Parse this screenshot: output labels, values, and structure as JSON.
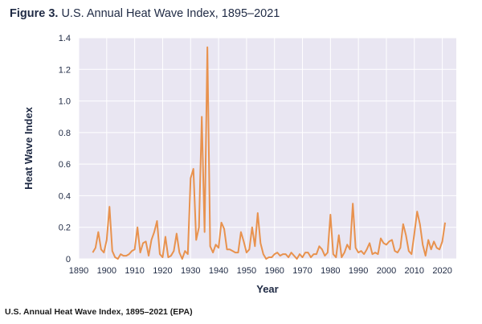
{
  "figure": {
    "label": "Figure 3.",
    "title": "U.S. Annual Heat Wave Index, 1895–2021"
  },
  "caption": "U.S. Annual Heat Wave Index, 1895–2021 (EPA)",
  "colors": {
    "line": "#e8924e",
    "plot_background": "#e9e6f2",
    "grid": "#ffffff",
    "axis_text": "#1f2a44"
  },
  "chart_data": {
    "type": "line",
    "title": "U.S. Annual Heat Wave Index, 1895–2021",
    "xlabel": "Year",
    "ylabel": "Heat Wave Index",
    "xlim": [
      1890,
      2025
    ],
    "ylim": [
      0,
      1.4
    ],
    "xticks": [
      1890,
      1900,
      1910,
      1920,
      1930,
      1940,
      1950,
      1960,
      1970,
      1980,
      1990,
      2000,
      2010,
      2020
    ],
    "yticks": [
      0,
      0.2,
      0.4,
      0.6,
      0.8,
      1.0,
      1.2,
      1.4
    ],
    "ytick_labels": [
      "0",
      "0.2",
      "0.4",
      "0.6",
      "0.8",
      "1.0",
      "1.2",
      "1.4"
    ],
    "grid": true,
    "series": [
      {
        "x": [
          1895,
          1896,
          1897,
          1898,
          1899,
          1900,
          1901,
          1902,
          1903,
          1904,
          1905,
          1906,
          1907,
          1908,
          1909,
          1910,
          1911,
          1912,
          1913,
          1914,
          1915,
          1916,
          1917,
          1918,
          1919,
          1920,
          1921,
          1922,
          1923,
          1924,
          1925,
          1926,
          1927,
          1928,
          1929,
          1930,
          1931,
          1932,
          1933,
          1934,
          1935,
          1936,
          1937,
          1938,
          1939,
          1940,
          1941,
          1942,
          1943,
          1944,
          1945,
          1946,
          1947,
          1948,
          1949,
          1950,
          1951,
          1952,
          1953,
          1954,
          1955,
          1956,
          1957,
          1958,
          1959,
          1960,
          1961,
          1962,
          1963,
          1964,
          1965,
          1966,
          1967,
          1968,
          1969,
          1970,
          1971,
          1972,
          1973,
          1974,
          1975,
          1976,
          1977,
          1978,
          1979,
          1980,
          1981,
          1982,
          1983,
          1984,
          1985,
          1986,
          1987,
          1988,
          1989,
          1990,
          1991,
          1992,
          1993,
          1994,
          1995,
          1996,
          1997,
          1998,
          1999,
          2000,
          2001,
          2002,
          2003,
          2004,
          2005,
          2006,
          2007,
          2008,
          2009,
          2010,
          2011,
          2012,
          2013,
          2014,
          2015,
          2016,
          2017,
          2018,
          2019,
          2020,
          2021
        ],
        "values": [
          0.04,
          0.07,
          0.17,
          0.06,
          0.04,
          0.12,
          0.33,
          0.05,
          0.01,
          0.0,
          0.03,
          0.02,
          0.02,
          0.03,
          0.05,
          0.06,
          0.2,
          0.04,
          0.1,
          0.11,
          0.02,
          0.12,
          0.17,
          0.24,
          0.03,
          0.01,
          0.14,
          0.01,
          0.02,
          0.05,
          0.16,
          0.04,
          0.0,
          0.05,
          0.03,
          0.51,
          0.57,
          0.12,
          0.2,
          0.9,
          0.17,
          1.34,
          0.08,
          0.04,
          0.09,
          0.07,
          0.23,
          0.19,
          0.06,
          0.06,
          0.05,
          0.04,
          0.04,
          0.17,
          0.11,
          0.04,
          0.06,
          0.2,
          0.08,
          0.29,
          0.1,
          0.03,
          0.0,
          0.01,
          0.01,
          0.03,
          0.04,
          0.02,
          0.03,
          0.03,
          0.01,
          0.04,
          0.02,
          0.0,
          0.03,
          0.01,
          0.04,
          0.04,
          0.01,
          0.03,
          0.03,
          0.08,
          0.06,
          0.02,
          0.04,
          0.28,
          0.03,
          0.01,
          0.15,
          0.01,
          0.04,
          0.09,
          0.06,
          0.35,
          0.07,
          0.04,
          0.05,
          0.03,
          0.06,
          0.1,
          0.03,
          0.04,
          0.03,
          0.13,
          0.1,
          0.09,
          0.11,
          0.12,
          0.05,
          0.04,
          0.07,
          0.22,
          0.15,
          0.05,
          0.03,
          0.16,
          0.3,
          0.22,
          0.09,
          0.02,
          0.12,
          0.06,
          0.11,
          0.07,
          0.06,
          0.11,
          0.23
        ]
      }
    ]
  }
}
